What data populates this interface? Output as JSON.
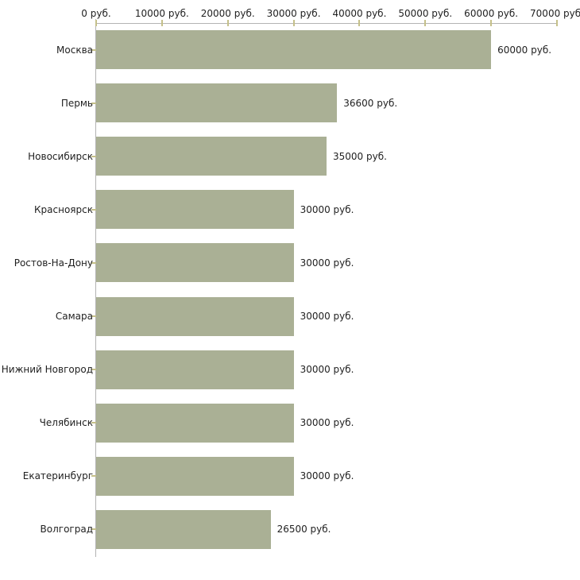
{
  "chart_data": {
    "type": "bar",
    "orientation": "horizontal",
    "title": "",
    "xlabel": "",
    "ylabel": "",
    "categories": [
      "Москва",
      "Пермь",
      "Новосибирск",
      "Красноярск",
      "Ростов-На-Дону",
      "Самара",
      "Нижний Новгород",
      "Челябинск",
      "Екатеринбург",
      "Волгоград"
    ],
    "values": [
      60000,
      36600,
      35000,
      30000,
      30000,
      30000,
      30000,
      30000,
      30000,
      26500
    ],
    "value_labels": [
      "60000 руб.",
      "36600 руб.",
      "35000 руб.",
      "30000 руб.",
      "30000 руб.",
      "30000 руб.",
      "30000 руб.",
      "30000 руб.",
      "30000 руб.",
      "26500 руб."
    ],
    "x_axis": {
      "position": "top",
      "min": 0,
      "max": 70000,
      "tick_values": [
        0,
        10000,
        20000,
        30000,
        40000,
        50000,
        60000,
        70000
      ],
      "tick_labels": [
        "0 руб.",
        "10000 руб.",
        "20000 руб.",
        "30000 руб.",
        "40000 руб.",
        "50000 руб.",
        "60000 руб.",
        "70000 руб."
      ]
    },
    "grid": false,
    "legend": false,
    "colors": {
      "bar": "#aab095",
      "axis_line": "#b3b3b3",
      "tick_mark": "#c5c08a",
      "text": "#1f1f1f",
      "background": "#ffffff"
    }
  }
}
